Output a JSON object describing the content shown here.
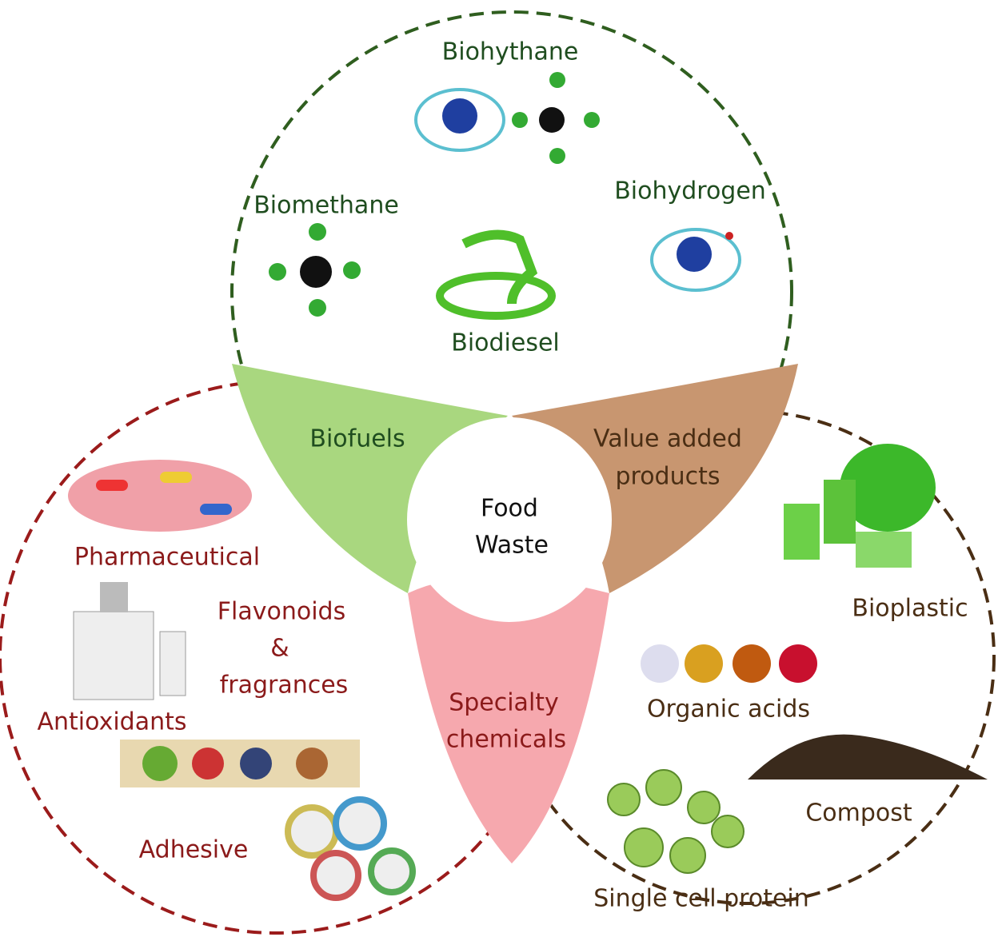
{
  "center": {
    "lines": [
      "Food",
      "Waste"
    ]
  },
  "petals": {
    "biofuels": {
      "lines": [
        "Biofuels"
      ]
    },
    "value_added": {
      "lines": [
        "Value added",
        "products"
      ]
    },
    "specialty": {
      "lines": [
        "Specialty",
        "chemicals"
      ]
    }
  },
  "biofuels_group": {
    "items": [
      "Biohythane",
      "Biomethane",
      "Biohydrogen",
      "Biodiesel"
    ]
  },
  "specialty_group": {
    "items": [
      "Pharmaceutical",
      "Flavonoids",
      "&",
      "fragrances",
      "Antioxidants",
      "Adhesive"
    ]
  },
  "value_added_group": {
    "items": [
      "Bioplastic",
      "Organic acids",
      "Compost",
      "Single cell protein"
    ]
  }
}
